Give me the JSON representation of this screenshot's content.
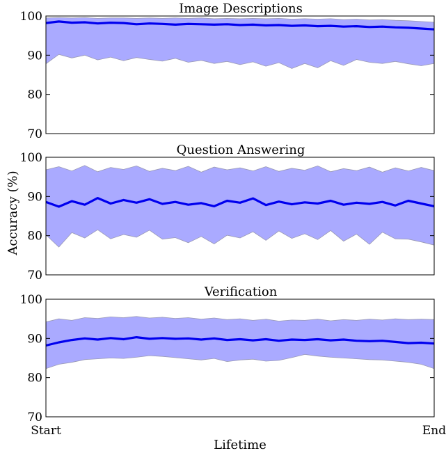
{
  "chart_data": {
    "type": "line",
    "xlabel": "Lifetime",
    "ylabel": "Accuracy (%)",
    "x_tick_labels": [
      "Start",
      "End"
    ],
    "shared_x": true,
    "colors": {
      "line": "#0000ee",
      "band": "#aaaaff",
      "band_edge": "#9a9ab4"
    },
    "panels": [
      {
        "title": "Image Descriptions",
        "ylim": [
          70,
          100
        ],
        "yticks": [
          70,
          80,
          90,
          100
        ],
        "mean": [
          98.2,
          98.6,
          98.3,
          98.4,
          98.1,
          98.3,
          98.2,
          97.9,
          98.1,
          98.0,
          97.8,
          98.0,
          97.9,
          97.8,
          97.9,
          97.7,
          97.8,
          97.6,
          97.7,
          97.5,
          97.6,
          97.4,
          97.5,
          97.3,
          97.4,
          97.2,
          97.3,
          97.1,
          97.0,
          96.8,
          96.6
        ],
        "upper": [
          99.5,
          99.6,
          99.5,
          99.6,
          99.4,
          99.5,
          99.5,
          99.4,
          99.5,
          99.4,
          99.5,
          99.4,
          99.5,
          99.3,
          99.4,
          99.3,
          99.4,
          99.3,
          99.4,
          99.2,
          99.3,
          99.2,
          99.3,
          99.1,
          99.2,
          99.0,
          99.1,
          98.9,
          98.8,
          98.6,
          98.4
        ],
        "lower": [
          87.8,
          90.2,
          89.3,
          90.0,
          88.8,
          89.5,
          88.6,
          89.4,
          88.9,
          88.5,
          89.2,
          88.2,
          88.7,
          87.9,
          88.4,
          87.6,
          88.3,
          87.2,
          88.1,
          86.6,
          87.9,
          86.8,
          88.6,
          87.4,
          88.9,
          88.2,
          87.9,
          88.4,
          87.8,
          87.3,
          87.9
        ]
      },
      {
        "title": "Question Answering",
        "ylim": [
          70,
          100
        ],
        "yticks": [
          70,
          80,
          90,
          100
        ],
        "mean": [
          88.6,
          87.4,
          88.8,
          87.9,
          89.6,
          88.2,
          89.1,
          88.4,
          89.3,
          88.1,
          88.6,
          87.9,
          88.3,
          87.5,
          88.9,
          88.4,
          89.5,
          87.8,
          88.7,
          88.0,
          88.5,
          88.2,
          88.9,
          87.9,
          88.4,
          88.1,
          88.6,
          87.7,
          88.9,
          88.2,
          87.5
        ],
        "upper": [
          96.8,
          97.6,
          96.5,
          97.9,
          96.3,
          97.4,
          96.9,
          97.8,
          96.4,
          97.2,
          96.6,
          97.7,
          96.2,
          97.5,
          96.8,
          97.3,
          96.5,
          97.6,
          96.4,
          97.2,
          96.7,
          97.8,
          96.3,
          97.1,
          96.6,
          97.5,
          96.2,
          97.3,
          96.5,
          97.4,
          96.6
        ],
        "lower": [
          80.2,
          77.1,
          80.8,
          79.4,
          81.5,
          79.2,
          80.3,
          79.6,
          81.4,
          79.1,
          79.5,
          78.2,
          79.8,
          77.9,
          80.1,
          79.4,
          81.0,
          78.8,
          81.2,
          79.3,
          80.5,
          79.0,
          81.3,
          78.6,
          80.4,
          77.8,
          80.9,
          79.2,
          79.1,
          78.4,
          77.6
        ]
      },
      {
        "title": "Verification",
        "ylim": [
          70,
          100
        ],
        "yticks": [
          70,
          80,
          90,
          100
        ],
        "mean": [
          88.2,
          89.0,
          89.6,
          90.0,
          89.7,
          90.1,
          89.8,
          90.3,
          89.9,
          90.1,
          89.9,
          90.0,
          89.7,
          90.0,
          89.6,
          89.8,
          89.5,
          89.8,
          89.4,
          89.7,
          89.6,
          89.8,
          89.5,
          89.7,
          89.4,
          89.3,
          89.4,
          89.1,
          88.8,
          88.9,
          88.7
        ],
        "upper": [
          94.2,
          95.0,
          94.6,
          95.3,
          95.1,
          95.5,
          95.3,
          95.6,
          95.2,
          95.4,
          95.1,
          95.3,
          94.9,
          95.2,
          94.8,
          95.0,
          94.6,
          94.9,
          94.4,
          94.7,
          94.6,
          94.9,
          94.5,
          94.8,
          94.6,
          94.9,
          94.7,
          95.0,
          94.8,
          94.9,
          94.8
        ],
        "lower": [
          82.3,
          83.4,
          83.9,
          84.6,
          84.8,
          85.0,
          84.9,
          85.2,
          85.6,
          85.4,
          85.1,
          84.8,
          84.5,
          84.9,
          84.1,
          84.5,
          84.7,
          84.2,
          84.4,
          85.1,
          85.9,
          85.5,
          85.2,
          85.0,
          84.8,
          84.6,
          84.5,
          84.2,
          83.9,
          83.4,
          82.3
        ]
      }
    ]
  }
}
